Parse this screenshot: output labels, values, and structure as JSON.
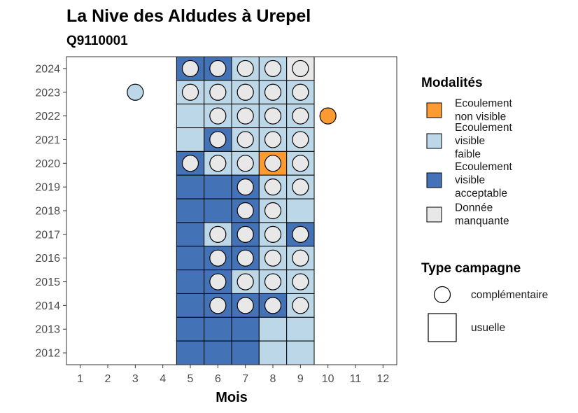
{
  "chart_data": {
    "type": "heatmap",
    "title": "La Nive des Aldudes à Urepel",
    "subtitle": "Q9110001",
    "xlabel": "Mois",
    "ylabel": "",
    "x_ticks": [
      1,
      2,
      3,
      4,
      5,
      6,
      7,
      8,
      9,
      10,
      11,
      12
    ],
    "y_ticks": [
      2012,
      2013,
      2014,
      2015,
      2016,
      2017,
      2018,
      2019,
      2020,
      2021,
      2022,
      2023,
      2024
    ],
    "xlim": [
      0.5,
      12.5
    ],
    "ylim": [
      2011.5,
      2024.5
    ],
    "grid": false,
    "modalities": [
      {
        "key": "nv",
        "label_lines": [
          "Ecoulement",
          "non visible"
        ],
        "color": "#FD9A30"
      },
      {
        "key": "vf",
        "label_lines": [
          "Ecoulement",
          "visible",
          "faible"
        ],
        "color": "#BCD7E8"
      },
      {
        "key": "va",
        "label_lines": [
          "Ecoulement",
          "visible",
          "acceptable"
        ],
        "color": "#4373B6"
      },
      {
        "key": "dm",
        "label_lines": [
          "Donnée",
          "manquante"
        ],
        "color": "#E8E8E8"
      }
    ],
    "campaign_types": [
      {
        "key": "complementaire",
        "label": "complémentaire",
        "shape": "circle"
      },
      {
        "key": "usuelle",
        "label": "usuelle",
        "shape": "square"
      }
    ],
    "legend_titles": {
      "modalities": "Modalités",
      "campaign": "Type campagne"
    },
    "legend_position": "right",
    "squares": [
      {
        "year": 2024,
        "month": 5,
        "status": "va"
      },
      {
        "year": 2024,
        "month": 6,
        "status": "va"
      },
      {
        "year": 2024,
        "month": 7,
        "status": "vf"
      },
      {
        "year": 2024,
        "month": 8,
        "status": "vf"
      },
      {
        "year": 2024,
        "month": 9,
        "status": "dm"
      },
      {
        "year": 2023,
        "month": 5,
        "status": "vf"
      },
      {
        "year": 2023,
        "month": 6,
        "status": "vf"
      },
      {
        "year": 2023,
        "month": 7,
        "status": "vf"
      },
      {
        "year": 2023,
        "month": 8,
        "status": "vf"
      },
      {
        "year": 2023,
        "month": 9,
        "status": "vf"
      },
      {
        "year": 2022,
        "month": 5,
        "status": "vf"
      },
      {
        "year": 2022,
        "month": 6,
        "status": "vf"
      },
      {
        "year": 2022,
        "month": 7,
        "status": "vf"
      },
      {
        "year": 2022,
        "month": 8,
        "status": "vf"
      },
      {
        "year": 2022,
        "month": 9,
        "status": "vf"
      },
      {
        "year": 2021,
        "month": 5,
        "status": "vf"
      },
      {
        "year": 2021,
        "month": 6,
        "status": "va"
      },
      {
        "year": 2021,
        "month": 7,
        "status": "vf"
      },
      {
        "year": 2021,
        "month": 8,
        "status": "vf"
      },
      {
        "year": 2021,
        "month": 9,
        "status": "vf"
      },
      {
        "year": 2020,
        "month": 5,
        "status": "va"
      },
      {
        "year": 2020,
        "month": 6,
        "status": "vf"
      },
      {
        "year": 2020,
        "month": 7,
        "status": "vf"
      },
      {
        "year": 2020,
        "month": 8,
        "status": "nv"
      },
      {
        "year": 2020,
        "month": 9,
        "status": "vf"
      },
      {
        "year": 2019,
        "month": 5,
        "status": "va"
      },
      {
        "year": 2019,
        "month": 6,
        "status": "va"
      },
      {
        "year": 2019,
        "month": 7,
        "status": "va"
      },
      {
        "year": 2019,
        "month": 8,
        "status": "vf"
      },
      {
        "year": 2019,
        "month": 9,
        "status": "vf"
      },
      {
        "year": 2018,
        "month": 5,
        "status": "va"
      },
      {
        "year": 2018,
        "month": 6,
        "status": "va"
      },
      {
        "year": 2018,
        "month": 7,
        "status": "va"
      },
      {
        "year": 2018,
        "month": 8,
        "status": "vf"
      },
      {
        "year": 2018,
        "month": 9,
        "status": "vf"
      },
      {
        "year": 2017,
        "month": 5,
        "status": "va"
      },
      {
        "year": 2017,
        "month": 6,
        "status": "vf"
      },
      {
        "year": 2017,
        "month": 7,
        "status": "va"
      },
      {
        "year": 2017,
        "month": 8,
        "status": "vf"
      },
      {
        "year": 2017,
        "month": 9,
        "status": "va"
      },
      {
        "year": 2016,
        "month": 5,
        "status": "va"
      },
      {
        "year": 2016,
        "month": 6,
        "status": "va"
      },
      {
        "year": 2016,
        "month": 7,
        "status": "va"
      },
      {
        "year": 2016,
        "month": 8,
        "status": "vf"
      },
      {
        "year": 2016,
        "month": 9,
        "status": "vf"
      },
      {
        "year": 2015,
        "month": 5,
        "status": "va"
      },
      {
        "year": 2015,
        "month": 6,
        "status": "va"
      },
      {
        "year": 2015,
        "month": 7,
        "status": "vf"
      },
      {
        "year": 2015,
        "month": 8,
        "status": "vf"
      },
      {
        "year": 2015,
        "month": 9,
        "status": "vf"
      },
      {
        "year": 2014,
        "month": 5,
        "status": "va"
      },
      {
        "year": 2014,
        "month": 6,
        "status": "va"
      },
      {
        "year": 2014,
        "month": 7,
        "status": "va"
      },
      {
        "year": 2014,
        "month": 8,
        "status": "va"
      },
      {
        "year": 2014,
        "month": 9,
        "status": "vf"
      },
      {
        "year": 2013,
        "month": 5,
        "status": "va"
      },
      {
        "year": 2013,
        "month": 6,
        "status": "va"
      },
      {
        "year": 2013,
        "month": 7,
        "status": "va"
      },
      {
        "year": 2013,
        "month": 8,
        "status": "vf"
      },
      {
        "year": 2013,
        "month": 9,
        "status": "vf"
      },
      {
        "year": 2012,
        "month": 5,
        "status": "va"
      },
      {
        "year": 2012,
        "month": 6,
        "status": "va"
      },
      {
        "year": 2012,
        "month": 7,
        "status": "va"
      },
      {
        "year": 2012,
        "month": 8,
        "status": "vf"
      },
      {
        "year": 2012,
        "month": 9,
        "status": "vf"
      }
    ],
    "circles": [
      {
        "year": 2024,
        "month": 5,
        "status": "dm"
      },
      {
        "year": 2024,
        "month": 6,
        "status": "dm"
      },
      {
        "year": 2024,
        "month": 7,
        "status": "dm"
      },
      {
        "year": 2024,
        "month": 8,
        "status": "dm"
      },
      {
        "year": 2024,
        "month": 9,
        "status": "dm"
      },
      {
        "year": 2023,
        "month": 3,
        "status": "vf"
      },
      {
        "year": 2023,
        "month": 5,
        "status": "dm"
      },
      {
        "year": 2023,
        "month": 6,
        "status": "dm"
      },
      {
        "year": 2023,
        "month": 7,
        "status": "dm"
      },
      {
        "year": 2023,
        "month": 8,
        "status": "dm"
      },
      {
        "year": 2023,
        "month": 9,
        "status": "dm"
      },
      {
        "year": 2022,
        "month": 6,
        "status": "dm"
      },
      {
        "year": 2022,
        "month": 7,
        "status": "dm"
      },
      {
        "year": 2022,
        "month": 8,
        "status": "dm"
      },
      {
        "year": 2022,
        "month": 9,
        "status": "dm"
      },
      {
        "year": 2022,
        "month": 10,
        "status": "nv"
      },
      {
        "year": 2021,
        "month": 6,
        "status": "dm"
      },
      {
        "year": 2021,
        "month": 7,
        "status": "dm"
      },
      {
        "year": 2021,
        "month": 8,
        "status": "dm"
      },
      {
        "year": 2021,
        "month": 9,
        "status": "dm"
      },
      {
        "year": 2020,
        "month": 5,
        "status": "dm"
      },
      {
        "year": 2020,
        "month": 6,
        "status": "dm"
      },
      {
        "year": 2020,
        "month": 7,
        "status": "dm"
      },
      {
        "year": 2020,
        "month": 8,
        "status": "dm"
      },
      {
        "year": 2020,
        "month": 9,
        "status": "dm"
      },
      {
        "year": 2019,
        "month": 7,
        "status": "dm"
      },
      {
        "year": 2019,
        "month": 8,
        "status": "dm"
      },
      {
        "year": 2019,
        "month": 9,
        "status": "dm"
      },
      {
        "year": 2018,
        "month": 7,
        "status": "dm"
      },
      {
        "year": 2018,
        "month": 8,
        "status": "dm"
      },
      {
        "year": 2017,
        "month": 6,
        "status": "dm"
      },
      {
        "year": 2017,
        "month": 7,
        "status": "dm"
      },
      {
        "year": 2017,
        "month": 8,
        "status": "dm"
      },
      {
        "year": 2017,
        "month": 9,
        "status": "dm"
      },
      {
        "year": 2016,
        "month": 6,
        "status": "dm"
      },
      {
        "year": 2016,
        "month": 7,
        "status": "dm"
      },
      {
        "year": 2016,
        "month": 8,
        "status": "dm"
      },
      {
        "year": 2016,
        "month": 9,
        "status": "dm"
      },
      {
        "year": 2015,
        "month": 6,
        "status": "dm"
      },
      {
        "year": 2015,
        "month": 7,
        "status": "dm"
      },
      {
        "year": 2015,
        "month": 8,
        "status": "dm"
      },
      {
        "year": 2015,
        "month": 9,
        "status": "dm"
      },
      {
        "year": 2014,
        "month": 6,
        "status": "dm"
      },
      {
        "year": 2014,
        "month": 7,
        "status": "dm"
      },
      {
        "year": 2014,
        "month": 8,
        "status": "dm"
      },
      {
        "year": 2014,
        "month": 9,
        "status": "dm"
      }
    ]
  }
}
